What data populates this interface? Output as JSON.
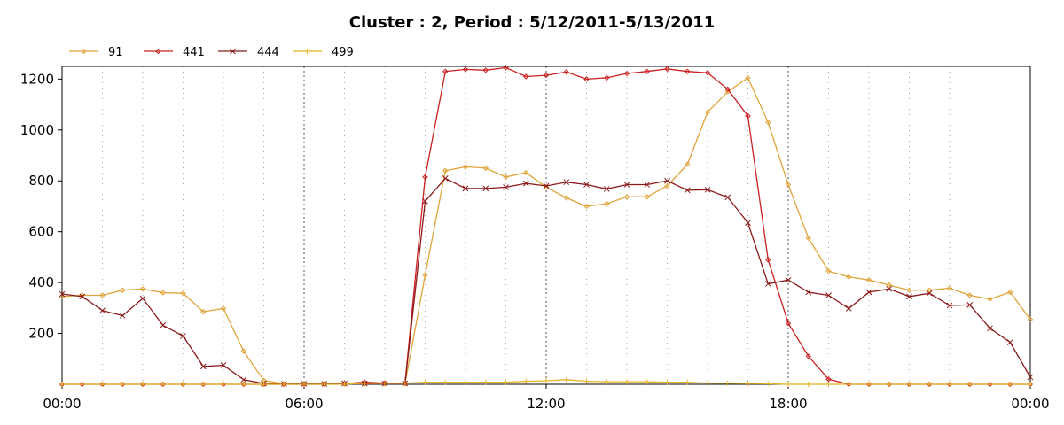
{
  "chart_data": {
    "type": "line",
    "title": "Cluster : 2, Period : 5/12/2011-5/13/2011",
    "xlabel": "",
    "ylabel": "",
    "x_tick_labels": [
      "00:00",
      "06:00",
      "12:00",
      "18:00",
      "00:00"
    ],
    "y_ticks": [
      200,
      400,
      600,
      800,
      1000,
      1200
    ],
    "ylim": [
      0,
      1250
    ],
    "xlim_hours": [
      0,
      24
    ],
    "grid": true,
    "legend_position": "top-left",
    "x": [
      0,
      0.5,
      1,
      1.5,
      2,
      2.5,
      3,
      3.5,
      4,
      4.5,
      5,
      5.5,
      6,
      6.5,
      7,
      7.5,
      8,
      8.5,
      9,
      9.5,
      10,
      10.5,
      11,
      11.5,
      12,
      12.5,
      13,
      13.5,
      14,
      14.5,
      15,
      15.5,
      16,
      16.5,
      17,
      17.5,
      18,
      18.5,
      19,
      19.5,
      20,
      20.5,
      21,
      21.5,
      22,
      22.5,
      23,
      23.5,
      24
    ],
    "series": [
      {
        "name": "91",
        "color": "#e0a43a",
        "marker": "diamond",
        "values": [
          345,
          350,
          350,
          370,
          375,
          360,
          358,
          285,
          298,
          130,
          15,
          2,
          2,
          2,
          2,
          2,
          2,
          2,
          430,
          840,
          855,
          850,
          815,
          832,
          775,
          733,
          700,
          710,
          737,
          737,
          780,
          865,
          1070,
          1150,
          1205,
          1030,
          785,
          575,
          445,
          422,
          410,
          390,
          370,
          370,
          378,
          350,
          335,
          362,
          255
        ]
      },
      {
        "name": "441",
        "color": "#cc1f1f",
        "marker": "diamond",
        "values": [
          0,
          0,
          0,
          0,
          0,
          0,
          0,
          0,
          0,
          0,
          0,
          0,
          0,
          0,
          3,
          8,
          5,
          5,
          815,
          1230,
          1238,
          1235,
          1245,
          1210,
          1215,
          1228,
          1200,
          1205,
          1222,
          1230,
          1240,
          1230,
          1225,
          1160,
          1055,
          490,
          240,
          110,
          20,
          0,
          0,
          0,
          0,
          0,
          0,
          0,
          0,
          0,
          0
        ]
      },
      {
        "name": "444",
        "color": "#8b1a1a",
        "marker": "x",
        "values": [
          355,
          345,
          290,
          270,
          338,
          232,
          190,
          70,
          75,
          18,
          3,
          2,
          2,
          2,
          3,
          3,
          3,
          3,
          720,
          810,
          770,
          770,
          775,
          790,
          780,
          795,
          785,
          768,
          785,
          785,
          800,
          763,
          765,
          735,
          635,
          395,
          410,
          362,
          350,
          298,
          362,
          375,
          345,
          358,
          310,
          312,
          220,
          165,
          28
        ]
      },
      {
        "name": "499",
        "color": "#e6b422",
        "marker": "plus",
        "values": [
          0,
          0,
          0,
          0,
          0,
          0,
          0,
          0,
          0,
          0,
          0,
          0,
          0,
          0,
          0,
          5,
          5,
          5,
          8,
          8,
          8,
          8,
          8,
          12,
          14,
          18,
          12,
          10,
          10,
          10,
          8,
          8,
          5,
          4,
          3,
          2,
          0,
          0,
          0,
          0,
          0,
          0,
          0,
          0,
          0,
          0,
          0,
          0,
          0
        ]
      }
    ]
  }
}
